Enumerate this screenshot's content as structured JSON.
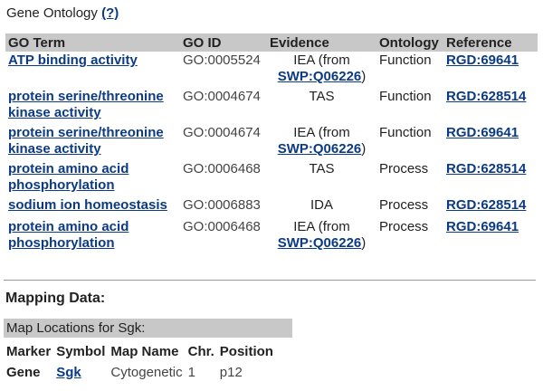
{
  "go_section": {
    "title": "Gene Ontology",
    "help_link": "(?)",
    "columns": [
      "GO Term",
      "GO ID",
      "Evidence",
      "Ontology",
      "Reference"
    ],
    "rows": [
      {
        "term": "ATP binding activity",
        "go_id": "GO:0005524",
        "evidence": "IEA (from",
        "evidence_link": "SWP:Q06226",
        "evidence_suffix": ")",
        "ontology": "Function",
        "reference": "RGD:69641"
      },
      {
        "term": "protein serine/threonine kinase activity",
        "go_id": "GO:0004674",
        "evidence": "TAS",
        "evidence_link": "",
        "evidence_suffix": "",
        "ontology": "Function",
        "reference": "RGD:628514"
      },
      {
        "term": "protein serine/threonine kinase activity",
        "go_id": "GO:0004674",
        "evidence": "IEA (from",
        "evidence_link": "SWP:Q06226",
        "evidence_suffix": ")",
        "ontology": "Function",
        "reference": "RGD:69641"
      },
      {
        "term": "protein amino acid phosphorylation",
        "go_id": "GO:0006468",
        "evidence": "TAS",
        "evidence_link": "",
        "evidence_suffix": "",
        "ontology": "Process",
        "reference": "RGD:628514"
      },
      {
        "term": "sodium ion homeostasis",
        "go_id": "GO:0006883",
        "evidence": "IDA",
        "evidence_link": "",
        "evidence_suffix": "",
        "ontology": "Process",
        "reference": "RGD:628514"
      },
      {
        "term": "protein amino acid phosphorylation",
        "go_id": "GO:0006468",
        "evidence": "IEA (from",
        "evidence_link": "SWP:Q06226",
        "evidence_suffix": ")",
        "ontology": "Process",
        "reference": "RGD:69641"
      }
    ]
  },
  "mapping_section": {
    "title": "Mapping Data:",
    "locations_title": "Map Locations for Sgk:",
    "columns": [
      "Marker",
      "Symbol",
      "Map Name",
      "Chr.",
      "Position"
    ],
    "rows": [
      {
        "marker": "Gene",
        "symbol": "Sgk",
        "map_name": "Cytogenetic",
        "chr": "1",
        "position": "p12"
      }
    ]
  },
  "colors": {
    "link": "#0b3a86",
    "header_bg": "#c8c8c8",
    "text": "#222222"
  }
}
